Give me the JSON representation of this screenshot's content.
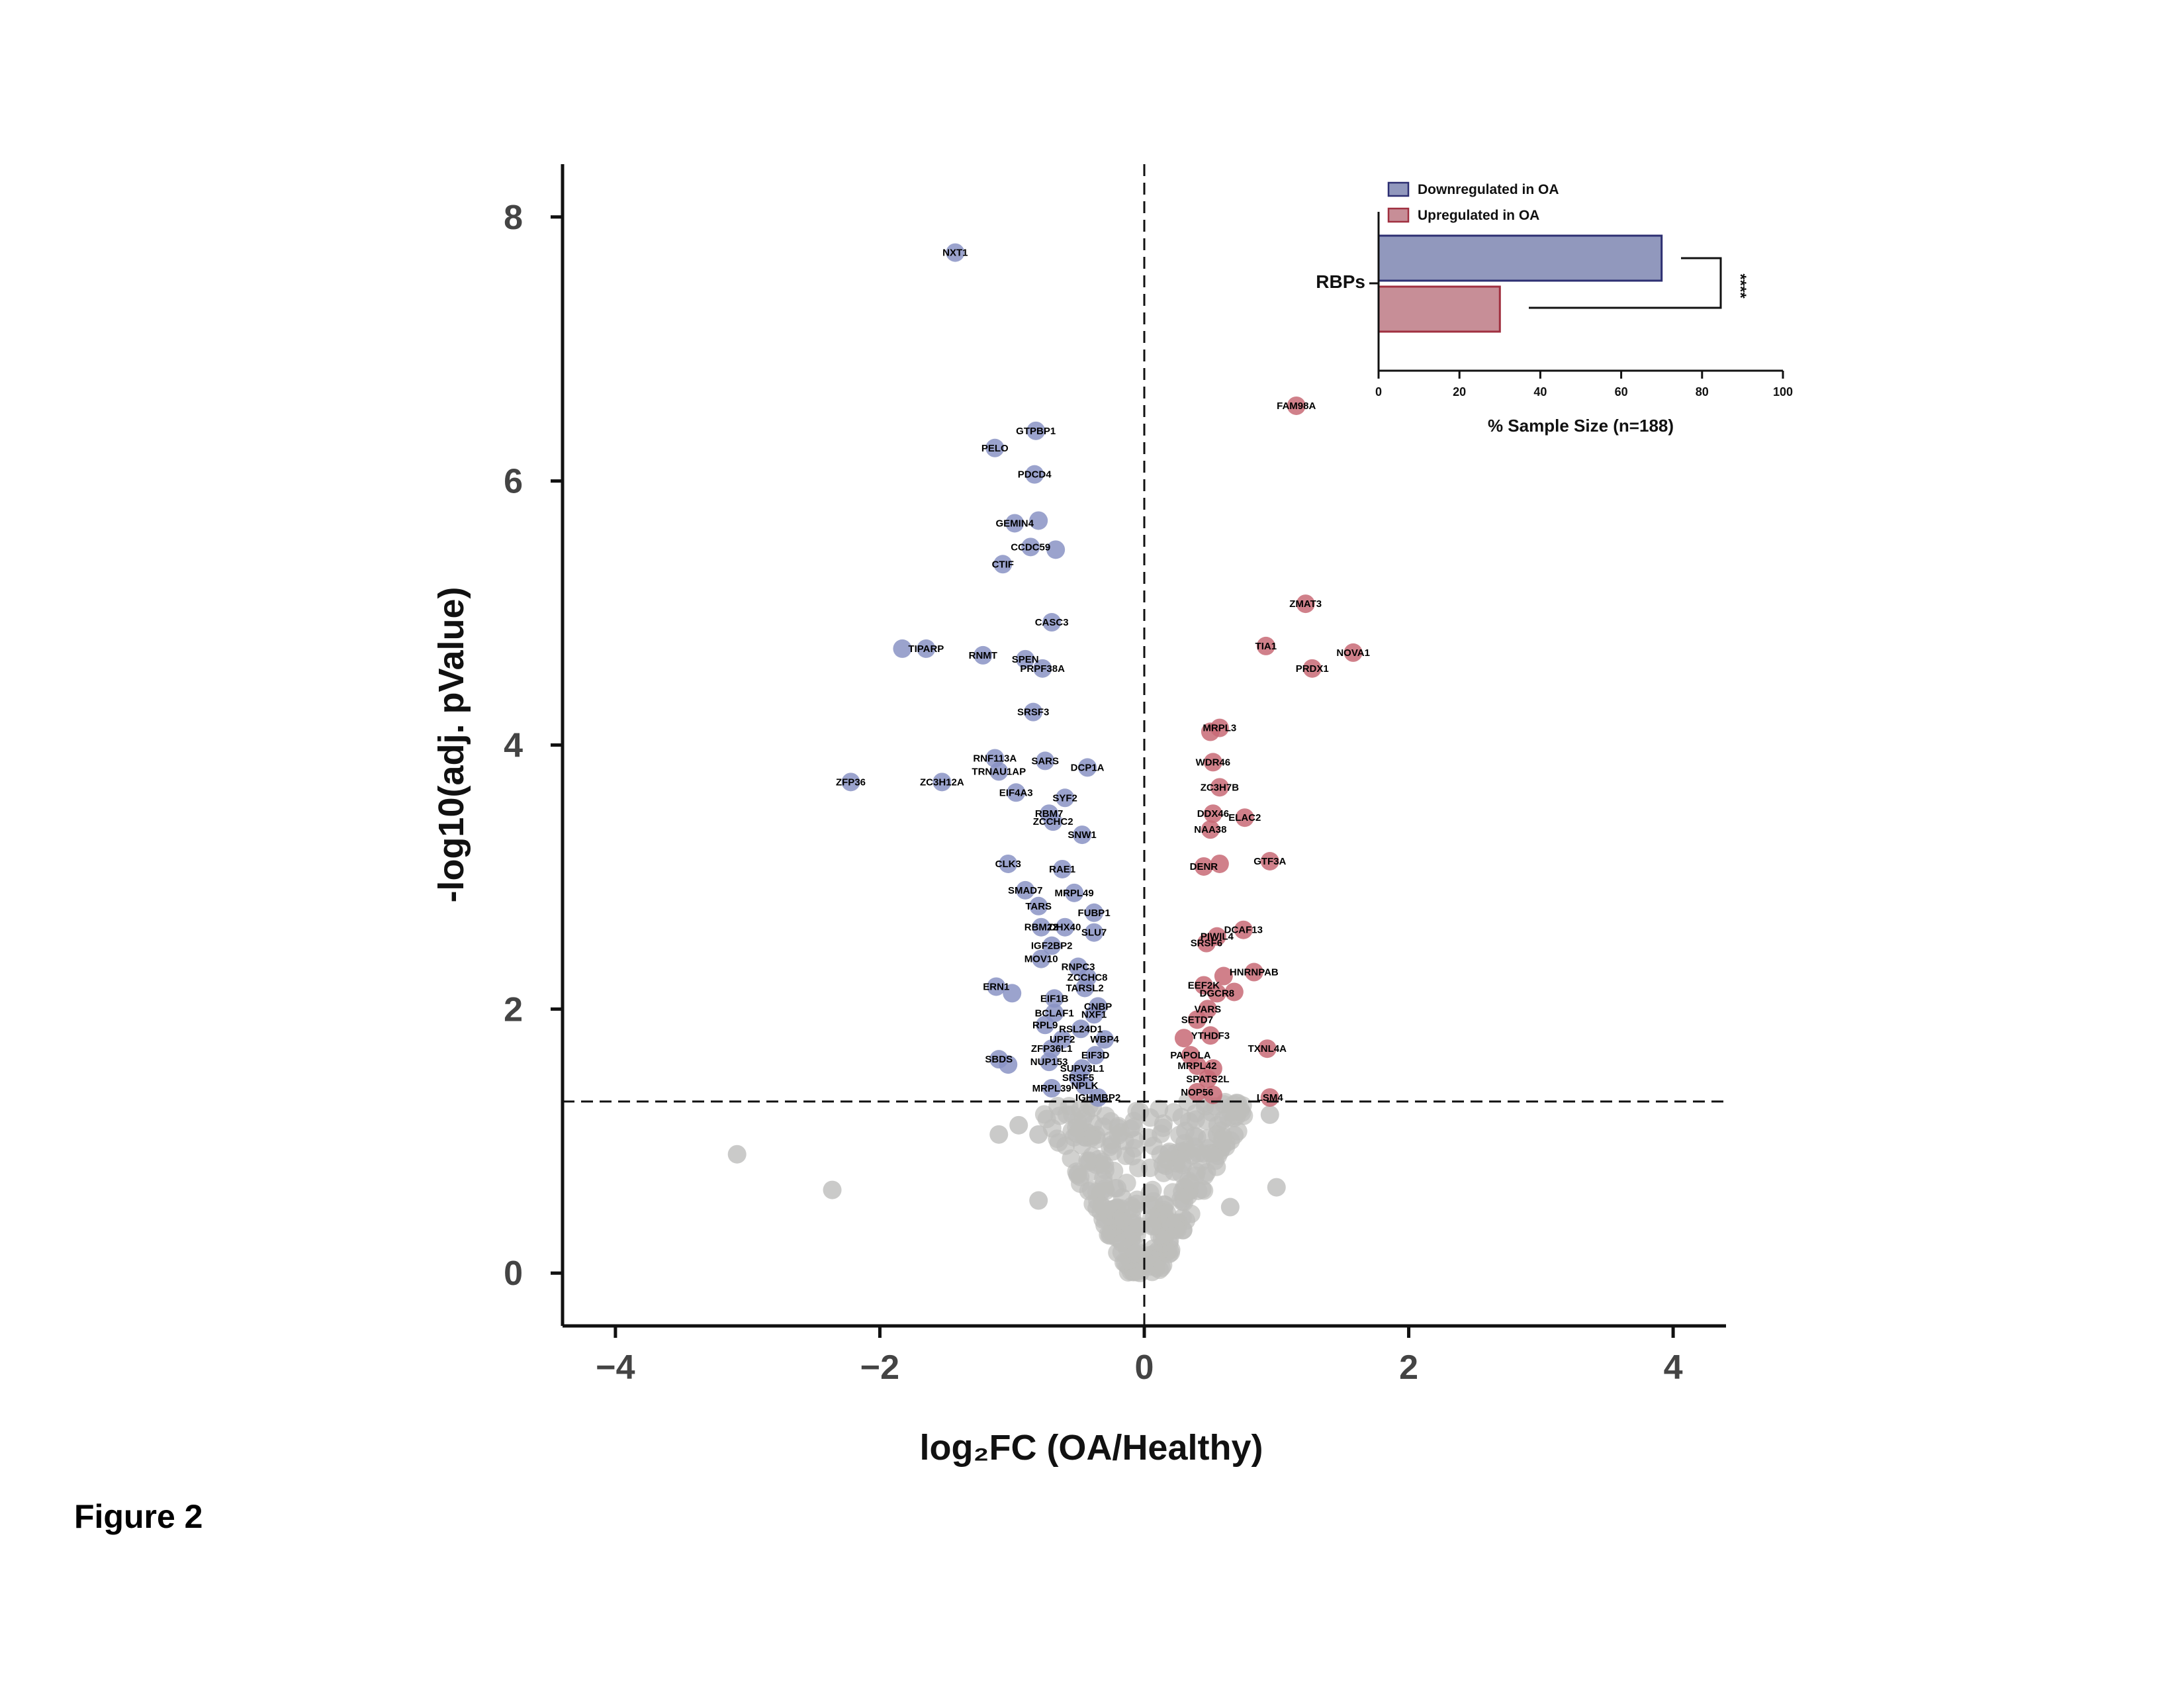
{
  "figure_label": "Figure 2",
  "colors": {
    "down": "#8A93C4",
    "up": "#C86A76",
    "ns": "#BDBDBB",
    "down_bar": "#9198BD",
    "down_bar_edge": "#2D2F72",
    "up_bar": "#C78E97",
    "up_bar_edge": "#A03040"
  },
  "chart_data": [
    {
      "type": "scatter",
      "title": "",
      "xlabel": "log₂FC (OA/Healthy)",
      "ylabel": "-log10(adj. pValue)",
      "xlim": [
        -4.4,
        4.4
      ],
      "ylim": [
        -0.4,
        8.4
      ],
      "xticks": [
        "−4",
        "−2",
        "0",
        "2",
        "4"
      ],
      "xtick_values": [
        -4,
        -2,
        0,
        2,
        4
      ],
      "yticks": [
        "0",
        "2",
        "4",
        "6",
        "8"
      ],
      "ytick_values": [
        0,
        2,
        4,
        6,
        8
      ],
      "threshold_y": 1.3,
      "threshold_x": 0,
      "grid": false,
      "series": [
        {
          "key": "down",
          "points": [
            {
              "label": "NXT1",
              "x": -1.43,
              "y": 7.73
            },
            {
              "label": "GTPBP1",
              "x": -0.82,
              "y": 6.38
            },
            {
              "label": "PELO",
              "x": -1.13,
              "y": 6.25
            },
            {
              "label": "PDCD4",
              "x": -0.83,
              "y": 6.05
            },
            {
              "label": "GEMIN4",
              "x": -0.98,
              "y": 5.68
            },
            {
              "label": "",
              "x": -0.8,
              "y": 5.7
            },
            {
              "label": "CCDC59",
              "x": -0.86,
              "y": 5.5
            },
            {
              "label": "",
              "x": -0.67,
              "y": 5.48
            },
            {
              "label": "CTIF",
              "x": -1.07,
              "y": 5.37
            },
            {
              "label": "CASC3",
              "x": -0.7,
              "y": 4.93
            },
            {
              "label": "TIPARP",
              "x": -1.65,
              "y": 4.73
            },
            {
              "label": "",
              "x": -1.83,
              "y": 4.73
            },
            {
              "label": "RNMT",
              "x": -1.22,
              "y": 4.68
            },
            {
              "label": "SPEN",
              "x": -0.9,
              "y": 4.65
            },
            {
              "label": "PRPF38A",
              "x": -0.77,
              "y": 4.58
            },
            {
              "label": "SRSF3",
              "x": -0.84,
              "y": 4.25
            },
            {
              "label": "RNF113A",
              "x": -1.13,
              "y": 3.9
            },
            {
              "label": "SARS",
              "x": -0.75,
              "y": 3.88
            },
            {
              "label": "DCP1A",
              "x": -0.43,
              "y": 3.83
            },
            {
              "label": "TRNAU1AP",
              "x": -1.1,
              "y": 3.8
            },
            {
              "label": "ZFP36",
              "x": -2.22,
              "y": 3.72
            },
            {
              "label": "ZC3H12A",
              "x": -1.53,
              "y": 3.72
            },
            {
              "label": "EIF4A3",
              "x": -0.97,
              "y": 3.64
            },
            {
              "label": "SYF2",
              "x": -0.6,
              "y": 3.6
            },
            {
              "label": "RBM7",
              "x": -0.72,
              "y": 3.48
            },
            {
              "label": "ZCCHC2",
              "x": -0.69,
              "y": 3.42
            },
            {
              "label": "SNW1",
              "x": -0.47,
              "y": 3.32
            },
            {
              "label": "CLK3",
              "x": -1.03,
              "y": 3.1
            },
            {
              "label": "RAE1",
              "x": -0.62,
              "y": 3.06
            },
            {
              "label": "SMAD7",
              "x": -0.9,
              "y": 2.9
            },
            {
              "label": "MRPL49",
              "x": -0.53,
              "y": 2.88
            },
            {
              "label": "TARS",
              "x": -0.8,
              "y": 2.78
            },
            {
              "label": "FUBP1",
              "x": -0.38,
              "y": 2.73
            },
            {
              "label": "RBM22",
              "x": -0.78,
              "y": 2.62
            },
            {
              "label": "DHX40",
              "x": -0.6,
              "y": 2.62
            },
            {
              "label": "SLU7",
              "x": -0.38,
              "y": 2.58
            },
            {
              "label": "IGF2BP2",
              "x": -0.7,
              "y": 2.48
            },
            {
              "label": "MOV10",
              "x": -0.78,
              "y": 2.38
            },
            {
              "label": "RNPC3",
              "x": -0.5,
              "y": 2.32
            },
            {
              "label": "ZCCHC8",
              "x": -0.43,
              "y": 2.24
            },
            {
              "label": "TARSL2",
              "x": -0.45,
              "y": 2.16
            },
            {
              "label": "ERN1",
              "x": -1.12,
              "y": 2.17
            },
            {
              "label": "",
              "x": -1.0,
              "y": 2.12
            },
            {
              "label": "EIF1B",
              "x": -0.68,
              "y": 2.08
            },
            {
              "label": "CNBP",
              "x": -0.35,
              "y": 2.02
            },
            {
              "label": "BCLAF1",
              "x": -0.68,
              "y": 1.97
            },
            {
              "label": "NXF1",
              "x": -0.38,
              "y": 1.96
            },
            {
              "label": "RPL9",
              "x": -0.75,
              "y": 1.88
            },
            {
              "label": "RSL24D1",
              "x": -0.48,
              "y": 1.85
            },
            {
              "label": "UPF2",
              "x": -0.62,
              "y": 1.77
            },
            {
              "label": "WBP4",
              "x": -0.3,
              "y": 1.77
            },
            {
              "label": "ZFP36L1",
              "x": -0.7,
              "y": 1.7
            },
            {
              "label": "EIF3D",
              "x": -0.37,
              "y": 1.65
            },
            {
              "label": "SBDS",
              "x": -1.1,
              "y": 1.62
            },
            {
              "label": "",
              "x": -1.03,
              "y": 1.58
            },
            {
              "label": "NUP153",
              "x": -0.72,
              "y": 1.6
            },
            {
              "label": "SUPV3L1",
              "x": -0.47,
              "y": 1.55
            },
            {
              "label": "SRSF5",
              "x": -0.5,
              "y": 1.48
            },
            {
              "label": "MRPL39",
              "x": -0.7,
              "y": 1.4
            },
            {
              "label": "NPLK",
              "x": -0.45,
              "y": 1.42
            },
            {
              "label": "IGHMBP2",
              "x": -0.35,
              "y": 1.33
            }
          ]
        },
        {
          "key": "up",
          "points": [
            {
              "label": "FAM98A",
              "x": 1.15,
              "y": 6.57
            },
            {
              "label": "ZMAT3",
              "x": 1.22,
              "y": 5.07
            },
            {
              "label": "TIA1",
              "x": 0.92,
              "y": 4.75
            },
            {
              "label": "NOVA1",
              "x": 1.58,
              "y": 4.7
            },
            {
              "label": "PRDX1",
              "x": 1.27,
              "y": 4.58
            },
            {
              "label": "MRPL3",
              "x": 0.57,
              "y": 4.13
            },
            {
              "label": "",
              "x": 0.5,
              "y": 4.1
            },
            {
              "label": "WDR46",
              "x": 0.52,
              "y": 3.87
            },
            {
              "label": "ZC3H7B",
              "x": 0.57,
              "y": 3.68
            },
            {
              "label": "DDX46",
              "x": 0.52,
              "y": 3.48
            },
            {
              "label": "ELAC2",
              "x": 0.76,
              "y": 3.45
            },
            {
              "label": "NAA38",
              "x": 0.5,
              "y": 3.36
            },
            {
              "label": "DENR",
              "x": 0.45,
              "y": 3.08
            },
            {
              "label": "",
              "x": 0.57,
              "y": 3.1
            },
            {
              "label": "GTF3A",
              "x": 0.95,
              "y": 3.12
            },
            {
              "label": "DCAF13",
              "x": 0.75,
              "y": 2.6
            },
            {
              "label": "PIWIL4",
              "x": 0.55,
              "y": 2.55
            },
            {
              "label": "SRSF6",
              "x": 0.47,
              "y": 2.5
            },
            {
              "label": "HNRNPAB",
              "x": 0.83,
              "y": 2.28
            },
            {
              "label": "",
              "x": 0.6,
              "y": 2.25
            },
            {
              "label": "EEF2K",
              "x": 0.45,
              "y": 2.18
            },
            {
              "label": "DGCR8",
              "x": 0.55,
              "y": 2.12
            },
            {
              "label": "",
              "x": 0.68,
              "y": 2.13
            },
            {
              "label": "VARS",
              "x": 0.48,
              "y": 2.0
            },
            {
              "label": "SETD7",
              "x": 0.4,
              "y": 1.92
            },
            {
              "label": "YTHDF3",
              "x": 0.5,
              "y": 1.8
            },
            {
              "label": "",
              "x": 0.3,
              "y": 1.78
            },
            {
              "label": "TXNL4A",
              "x": 0.93,
              "y": 1.7
            },
            {
              "label": "PAPOLA",
              "x": 0.35,
              "y": 1.65
            },
            {
              "label": "MRPL42",
              "x": 0.4,
              "y": 1.57
            },
            {
              "label": "",
              "x": 0.52,
              "y": 1.55
            },
            {
              "label": "SPATS2L",
              "x": 0.48,
              "y": 1.47
            },
            {
              "label": "NOP56",
              "x": 0.4,
              "y": 1.37
            },
            {
              "label": "",
              "x": 0.52,
              "y": 1.35
            },
            {
              "label": "LSM4",
              "x": 0.95,
              "y": 1.33
            }
          ]
        }
      ]
    },
    {
      "type": "bar",
      "orientation": "horizontal",
      "title": "",
      "categories": [
        "RBPs"
      ],
      "xlabel": "% Sample Size (n=188)",
      "xlim": [
        0,
        100
      ],
      "xticks": [
        "0",
        "20",
        "40",
        "60",
        "80",
        "100"
      ],
      "legend": "top-left",
      "significance": "****",
      "series": [
        {
          "name": "Downregulated in OA",
          "key": "down",
          "values": [
            70
          ]
        },
        {
          "name": "Upregulated in OA",
          "key": "up",
          "values": [
            30
          ]
        }
      ]
    }
  ]
}
